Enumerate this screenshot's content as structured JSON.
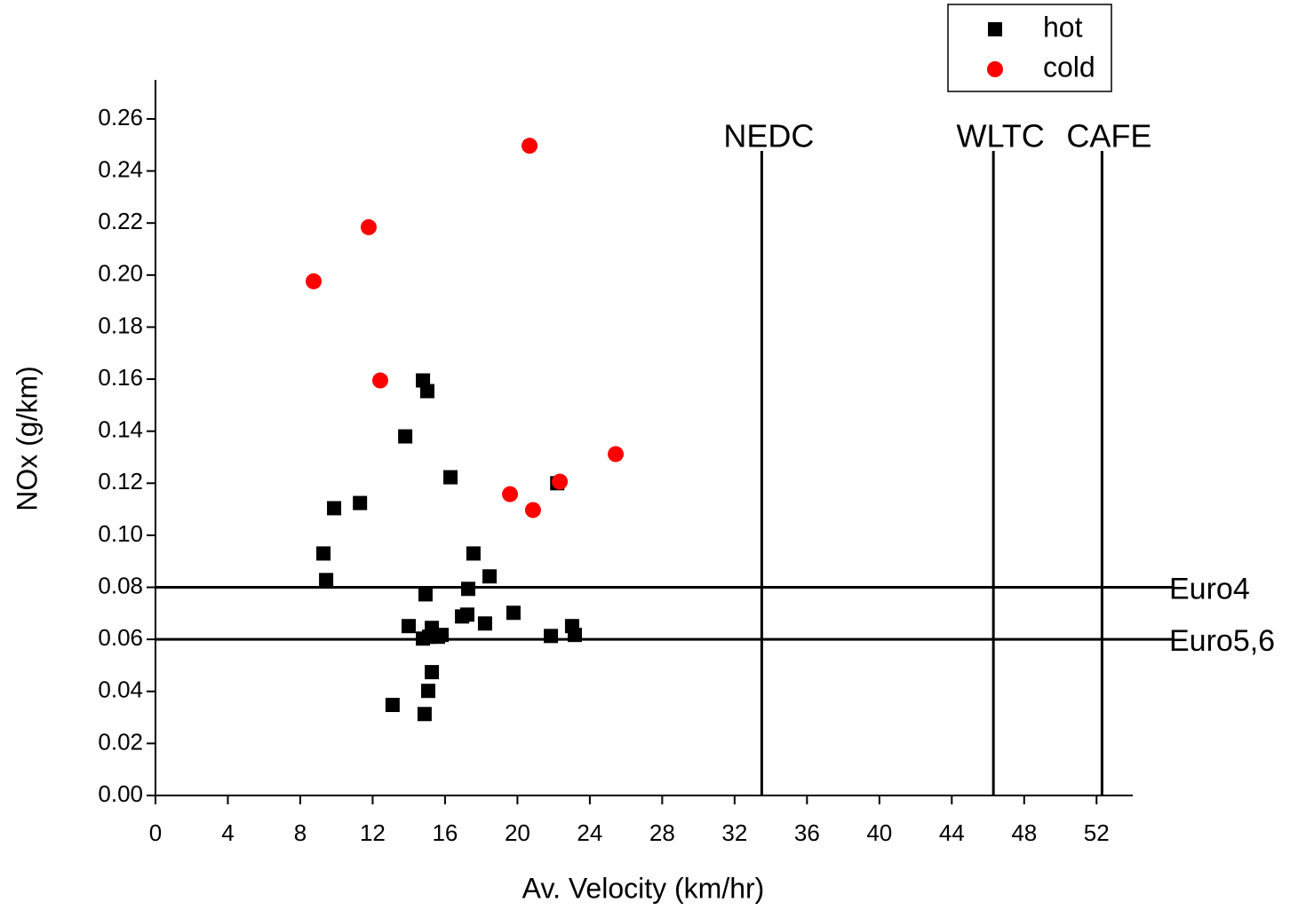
{
  "chart_data": {
    "type": "scatter",
    "x_label": "Av. Velocity (km/hr)",
    "y_label": "NOx (g/km)",
    "xlim": [
      0,
      54
    ],
    "ylim": [
      0,
      0.275
    ],
    "xticks": [
      0,
      4,
      8,
      12,
      16,
      20,
      24,
      28,
      32,
      36,
      40,
      44,
      48,
      52
    ],
    "yticks": [
      {
        "value": 0,
        "label": "0.00"
      },
      0.02,
      0.04,
      0.06,
      0.08,
      {
        "value": 0.1,
        "label": "0.10"
      },
      0.12,
      0.14,
      0.16,
      0.18,
      {
        "value": 0.2,
        "label": "0.20"
      },
      0.22,
      0.24,
      0.26
    ],
    "legend": "outside top right",
    "series": [
      {
        "name": "hot",
        "color": "#000000",
        "marker": "square",
        "x": [
          14.78,
          15.02,
          13.8,
          16.3,
          22.2,
          11.3,
          9.87,
          9.28,
          17.57,
          9.43,
          18.46,
          17.28,
          14.92,
          19.78,
          16.94,
          17.23,
          18.21,
          13.99,
          15.27,
          23.02,
          14.78,
          15.12,
          15.61,
          15.81,
          21.85,
          23.17,
          15.27,
          15.07,
          13.1,
          14.87
        ],
        "y": [
          0.1595,
          0.1554,
          0.138,
          0.1223,
          0.12,
          0.1124,
          0.1104,
          0.093,
          0.093,
          0.0828,
          0.0842,
          0.0794,
          0.0773,
          0.0702,
          0.0688,
          0.0695,
          0.0661,
          0.0651,
          0.0644,
          0.0651,
          0.0603,
          0.061,
          0.061,
          0.0617,
          0.0613,
          0.0617,
          0.0474,
          0.0402,
          0.0348,
          0.0313
        ]
      },
      {
        "name": "cold",
        "color": "#ff0000",
        "marker": "circle",
        "x": [
          8.74,
          11.78,
          12.42,
          20.67,
          19.59,
          20.86,
          22.34,
          25.43
        ],
        "y": [
          0.1976,
          0.2184,
          0.1595,
          0.2497,
          0.1158,
          0.1097,
          0.1206,
          0.1312
        ]
      }
    ],
    "reference_lines": [
      {
        "label": "NEDC",
        "x": 33.5
      },
      {
        "label": "WLTC",
        "x": 46.3
      },
      {
        "label": "CAFE",
        "x": 52.3
      },
      {
        "label": "Euro4",
        "y": 0.08
      },
      {
        "label": "Euro5,6",
        "y": 0.06
      }
    ]
  }
}
